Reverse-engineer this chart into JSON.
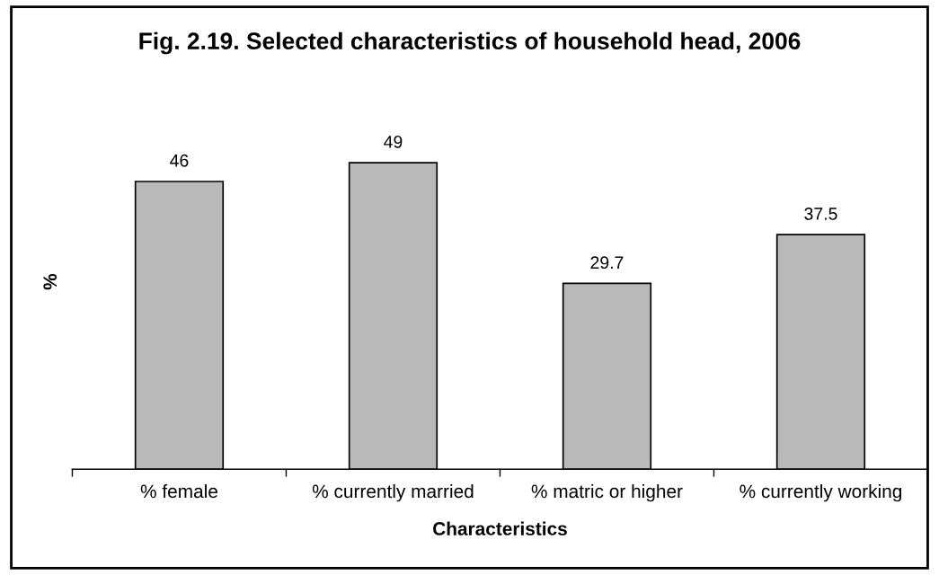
{
  "chart_data": {
    "type": "bar",
    "title": "Fig. 2.19. Selected characteristics of household head, 2006",
    "xlabel": "Characteristics",
    "ylabel": "%",
    "categories": [
      "% female",
      "% currently married",
      "% matric or higher",
      "% currently working"
    ],
    "values": [
      46,
      49,
      29.7,
      37.5
    ],
    "color": "#b9b9b9",
    "data_labels": true,
    "grid": false,
    "legend": false,
    "tick_labels": "x"
  }
}
